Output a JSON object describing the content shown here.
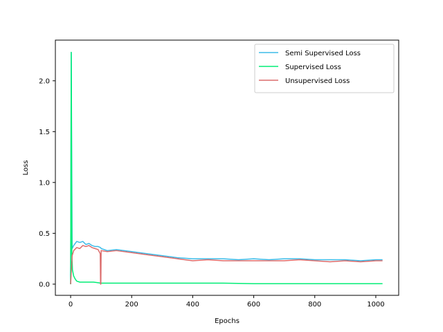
{
  "chart_data": {
    "type": "line",
    "title": "",
    "xlabel": "Epochs",
    "ylabel": "Loss",
    "xlim": [
      -50,
      1075
    ],
    "ylim": [
      -0.11,
      2.4
    ],
    "xticks": [
      0,
      200,
      400,
      600,
      800,
      1000
    ],
    "yticks": [
      0.0,
      0.5,
      1.0,
      1.5,
      2.0
    ],
    "xtick_labels": [
      "0",
      "200",
      "400",
      "600",
      "800",
      "1000"
    ],
    "ytick_labels": [
      "0.0",
      "0.5",
      "1.0",
      "1.5",
      "2.0"
    ],
    "grid": false,
    "legend_position": "top-right",
    "series": [
      {
        "name": "Semi Supervised Loss",
        "color": "#3bbbe8",
        "x": [
          0,
          2,
          5,
          10,
          20,
          30,
          40,
          50,
          60,
          70,
          80,
          90,
          98,
          100,
          120,
          150,
          200,
          250,
          300,
          350,
          400,
          450,
          500,
          550,
          600,
          650,
          700,
          750,
          800,
          850,
          900,
          950,
          1000,
          1022
        ],
        "y": [
          0.0,
          2.28,
          0.35,
          0.38,
          0.42,
          0.41,
          0.42,
          0.39,
          0.4,
          0.38,
          0.37,
          0.37,
          0.36,
          0.35,
          0.33,
          0.34,
          0.32,
          0.3,
          0.28,
          0.26,
          0.25,
          0.25,
          0.25,
          0.24,
          0.25,
          0.24,
          0.25,
          0.25,
          0.24,
          0.24,
          0.24,
          0.23,
          0.24,
          0.24
        ]
      },
      {
        "name": "Supervised Loss",
        "color": "#00ee76",
        "x": [
          0,
          2,
          4,
          6,
          10,
          15,
          20,
          30,
          50,
          75,
          100,
          150,
          200,
          300,
          400,
          500,
          600,
          700,
          800,
          900,
          1000,
          1022
        ],
        "y": [
          0.0,
          2.28,
          0.3,
          0.14,
          0.08,
          0.05,
          0.03,
          0.02,
          0.02,
          0.02,
          0.01,
          0.01,
          0.01,
          0.01,
          0.01,
          0.01,
          0.005,
          0.005,
          0.005,
          0.005,
          0.005,
          0.005
        ]
      },
      {
        "name": "Unsupervised Loss",
        "color": "#db6b6b",
        "x": [
          0,
          5,
          10,
          20,
          30,
          40,
          50,
          60,
          70,
          80,
          90,
          97,
          98,
          99,
          100,
          120,
          150,
          200,
          250,
          300,
          350,
          400,
          450,
          500,
          550,
          600,
          650,
          700,
          750,
          800,
          850,
          900,
          950,
          1000,
          1022
        ],
        "y": [
          0.0,
          0.28,
          0.33,
          0.36,
          0.35,
          0.38,
          0.37,
          0.38,
          0.36,
          0.35,
          0.34,
          0.3,
          0.0,
          0.0,
          0.33,
          0.32,
          0.33,
          0.31,
          0.29,
          0.27,
          0.25,
          0.23,
          0.24,
          0.23,
          0.23,
          0.23,
          0.23,
          0.23,
          0.24,
          0.23,
          0.22,
          0.23,
          0.22,
          0.23,
          0.23
        ]
      }
    ]
  }
}
